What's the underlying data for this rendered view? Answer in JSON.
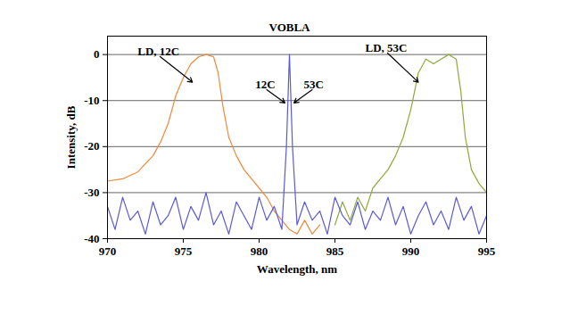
{
  "chart_data": {
    "type": "line",
    "x_label": "Wavelength, nm",
    "y_label": "Intensity, dB",
    "xlim": [
      970,
      995
    ],
    "xticks": [
      970,
      975,
      980,
      985,
      990,
      995
    ],
    "ylim": [
      -40,
      4
    ],
    "yticks": [
      -40,
      -30,
      -20,
      -10,
      0
    ],
    "grid": true,
    "series": [
      {
        "name": "LD, 12C",
        "color": "#f2873a",
        "x": [
          970,
          971,
          972,
          973,
          973.5,
          974,
          974.5,
          975,
          975.5,
          976,
          976.5,
          977,
          977.3,
          977.6,
          978,
          978.5,
          979,
          979.5,
          980,
          980.5,
          981,
          981.5,
          982,
          982.5,
          983,
          983.5,
          984
        ],
        "values": [
          -27.5,
          -27,
          -25.5,
          -22,
          -19,
          -15,
          -9,
          -5,
          -2,
          -0.5,
          0,
          -0.5,
          -4,
          -11,
          -18,
          -22,
          -25,
          -27,
          -29,
          -31,
          -34,
          -36,
          -38,
          -39,
          -36,
          -39,
          -37
        ]
      },
      {
        "name": "LD, 53C",
        "color": "#8fa83a",
        "x": [
          985,
          985.5,
          986,
          986.5,
          987,
          987.5,
          988,
          988.5,
          989,
          989.5,
          990,
          990.5,
          991,
          991.5,
          992,
          992.5,
          993,
          993.3,
          993.6,
          994,
          994.5,
          995
        ],
        "values": [
          -37,
          -32,
          -36,
          -31,
          -34,
          -29,
          -27,
          -25,
          -22,
          -18,
          -12,
          -4,
          -1,
          -2,
          -1,
          0,
          -1,
          -8,
          -18,
          -25,
          -28,
          -30
        ]
      },
      {
        "name": "VOBLA",
        "color": "#5a5ad8",
        "x": [
          970,
          970.5,
          971,
          971.5,
          972,
          972.5,
          973,
          973.5,
          974,
          974.5,
          975,
          975.5,
          976,
          976.5,
          977,
          977.5,
          978,
          978.5,
          979,
          979.5,
          980,
          980.5,
          981,
          981.5,
          981.8,
          982,
          982.2,
          982.5,
          983,
          983.5,
          984,
          984.5,
          985,
          985.5,
          986,
          986.5,
          987,
          987.5,
          988,
          988.5,
          989,
          989.5,
          990,
          990.5,
          991,
          991.5,
          992,
          992.5,
          993,
          993.5,
          994,
          994.5,
          995
        ],
        "values": [
          -33,
          -38,
          -31,
          -36,
          -34,
          -39,
          -32,
          -37,
          -35,
          -31,
          -38,
          -33,
          -36,
          -30,
          -37,
          -34,
          -39,
          -32,
          -35,
          -38,
          -31,
          -36,
          -33,
          -38,
          -20,
          0,
          -20,
          -37,
          -32,
          -36,
          -34,
          -39,
          -31,
          -35,
          -37,
          -32,
          -38,
          -34,
          -36,
          -31,
          -37,
          -33,
          -39,
          -35,
          -32,
          -37,
          -34,
          -38,
          -31,
          -36,
          -33,
          -39,
          -35
        ]
      }
    ],
    "annotations": [
      {
        "text": "LD, 12C",
        "x": 975.6,
        "y": -6
      },
      {
        "text": "VOBLA",
        "x": 982,
        "y": 4
      },
      {
        "text": "12C",
        "x": 981.7,
        "y": -10.5
      },
      {
        "text": "53C",
        "x": 982.3,
        "y": -10.5
      },
      {
        "text": "LD, 53C",
        "x": 990.5,
        "y": -6
      }
    ]
  }
}
